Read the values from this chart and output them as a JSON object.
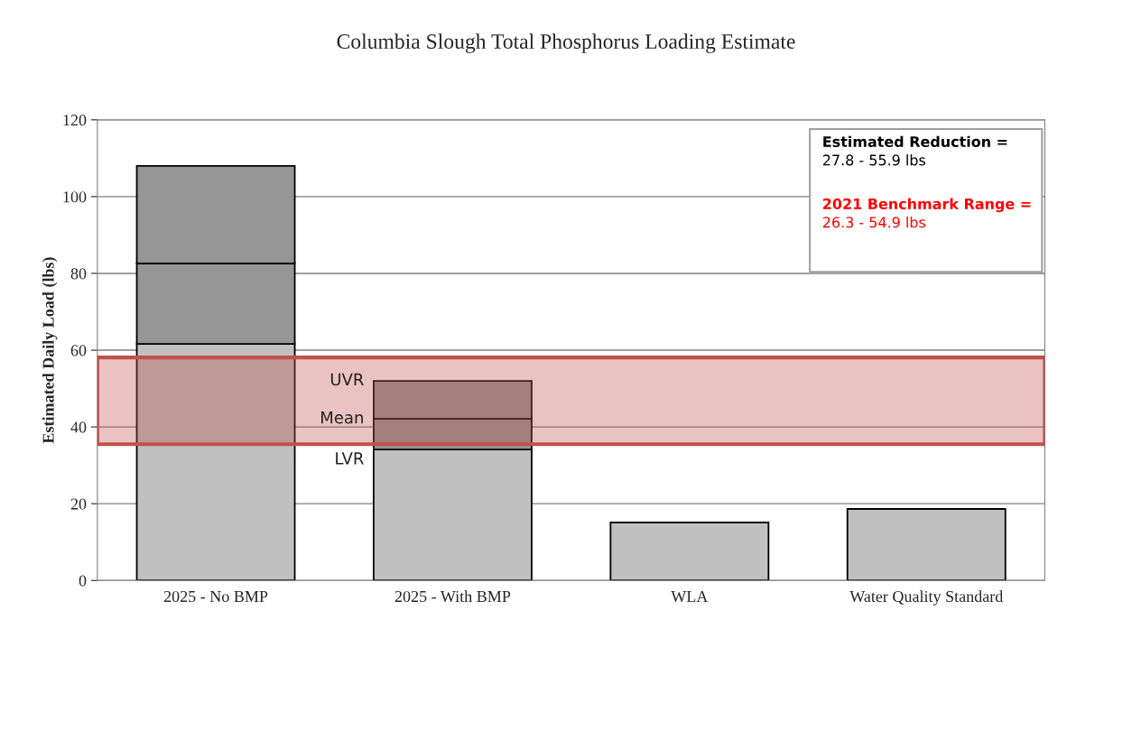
{
  "chart_data": {
    "type": "bar",
    "title": "Columbia Slough Total Phosphorus Loading Estimate",
    "ylabel": "Estimated Daily Load (lbs)",
    "categories": [
      "2025 - No BMP",
      "2025 - With BMP",
      "WLA",
      "Water Quality Standard"
    ],
    "stacked": true,
    "series": [
      {
        "color": "#c0c0c0",
        "values": [
          61.6,
          34.1,
          15.1,
          18.6
        ]
      },
      {
        "color": "#969696",
        "values": [
          21.0,
          8.0,
          null,
          null
        ]
      },
      {
        "color": "#969696",
        "values": [
          25.4,
          9.9,
          null,
          null
        ]
      }
    ],
    "ylim": [
      0,
      120
    ],
    "yticks": [
      0,
      20,
      40,
      60,
      80,
      100,
      120
    ],
    "grid": "y",
    "legend": false,
    "bands": [
      {
        "axis": "y",
        "from": 35.5,
        "to": 58.1,
        "color": "#c0504d"
      }
    ],
    "annotations": [
      "UVR",
      "Mean",
      "LVR",
      "Estimated Reduction =\n27.8 - 55.9 lbs",
      "2021 Benchmark Range =\n26.3 - 54.9 lbs"
    ]
  }
}
